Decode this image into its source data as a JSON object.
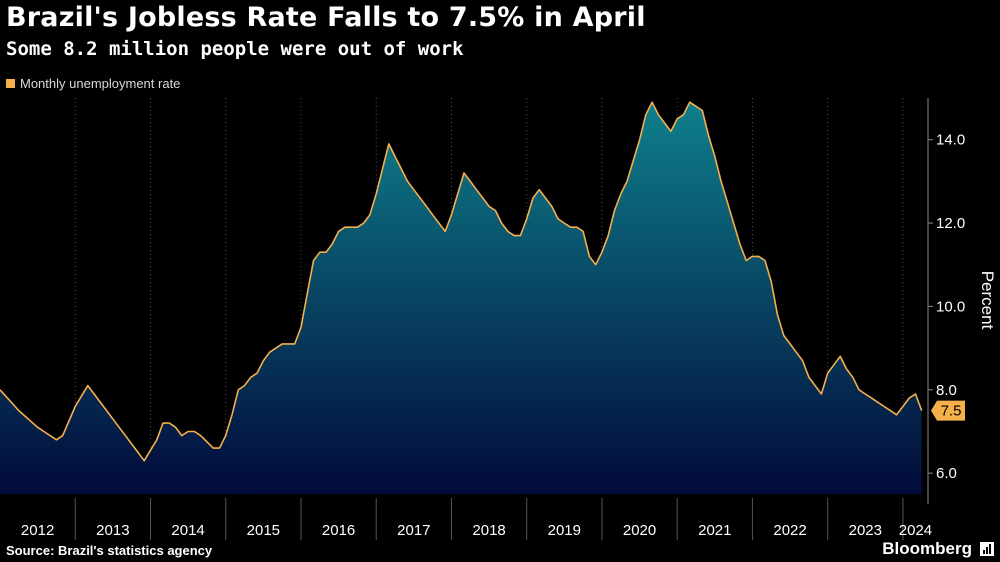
{
  "header": {
    "title": "Brazil's Jobless Rate Falls to 7.5% in April",
    "subtitle": "Some 8.2 million people were out of work"
  },
  "legend": {
    "label": "Monthly unemployment rate",
    "color": "#f5b04a"
  },
  "footer": {
    "source": "Source: Brazil's statistics agency",
    "brand": "Bloomberg"
  },
  "colors": {
    "line": "#f5b04a",
    "fill_top": "#0e7f8b",
    "fill_bottom": "#020a3a",
    "background": "#000000",
    "grid": "#555555",
    "last_value_bg": "#f5b04a"
  },
  "chart_data": {
    "type": "area",
    "ylabel": "Percent",
    "ylim": [
      5.5,
      15.0
    ],
    "yticks": [
      "6.0",
      "8.0",
      "10.0",
      "12.0",
      "14.0"
    ],
    "ytick_values": [
      6,
      8,
      10,
      12,
      14
    ],
    "xlim": [
      "2012-01",
      "2024-05"
    ],
    "xticks": [
      "2012",
      "2013",
      "2014",
      "2015",
      "2016",
      "2017",
      "2018",
      "2019",
      "2020",
      "2021",
      "2022",
      "2023",
      "2024"
    ],
    "last_value_label": "7.5",
    "grid": "vertical dotted at year boundaries",
    "series": [
      {
        "x": [
          "2012-01",
          "2012-04",
          "2012-07",
          "2012-08",
          "2012-10",
          "2012-11",
          "2013-01",
          "2013-03",
          "2013-04",
          "2013-06",
          "2013-08",
          "2013-10",
          "2013-12",
          "2014-02",
          "2014-03",
          "2014-04",
          "2014-05",
          "2014-06",
          "2014-07",
          "2014-08",
          "2014-09",
          "2014-11",
          "2014-12",
          "2015-01",
          "2015-02",
          "2015-03",
          "2015-04",
          "2015-05",
          "2015-06",
          "2015-07",
          "2015-08",
          "2015-09",
          "2015-10",
          "2015-11",
          "2015-12",
          "2016-01",
          "2016-02",
          "2016-03",
          "2016-04",
          "2016-05",
          "2016-06",
          "2016-07",
          "2016-08",
          "2016-09",
          "2016-10",
          "2016-11",
          "2016-12",
          "2017-01",
          "2017-02",
          "2017-03",
          "2017-04",
          "2017-05",
          "2017-06",
          "2017-07",
          "2017-08",
          "2017-09",
          "2017-10",
          "2017-11",
          "2017-12",
          "2018-01",
          "2018-02",
          "2018-03",
          "2018-04",
          "2018-05",
          "2018-06",
          "2018-07",
          "2018-08",
          "2018-09",
          "2018-10",
          "2018-11",
          "2018-12",
          "2019-01",
          "2019-02",
          "2019-03",
          "2019-04",
          "2019-05",
          "2019-06",
          "2019-07",
          "2019-08",
          "2019-09",
          "2019-10",
          "2019-11",
          "2019-12",
          "2020-01",
          "2020-02",
          "2020-03",
          "2020-04",
          "2020-05",
          "2020-06",
          "2020-07",
          "2020-08",
          "2020-09",
          "2020-10",
          "2020-11",
          "2020-12",
          "2021-01",
          "2021-02",
          "2021-03",
          "2021-04",
          "2021-05",
          "2021-06",
          "2021-07",
          "2021-08",
          "2021-09",
          "2021-10",
          "2021-11",
          "2021-12",
          "2022-01",
          "2022-02",
          "2022-03",
          "2022-04",
          "2022-05",
          "2022-06",
          "2022-07",
          "2022-08",
          "2022-09",
          "2022-10",
          "2022-11",
          "2022-12",
          "2023-01",
          "2023-02",
          "2023-03",
          "2023-04",
          "2023-05",
          "2023-06",
          "2023-07",
          "2023-08",
          "2023-09",
          "2023-10",
          "2023-11",
          "2023-12",
          "2024-01",
          "2024-02",
          "2024-03",
          "2024-04"
        ],
        "y": [
          8.0,
          7.5,
          7.1,
          7.0,
          6.8,
          6.9,
          7.6,
          8.1,
          7.9,
          7.5,
          7.1,
          6.7,
          6.3,
          6.8,
          7.2,
          7.2,
          7.1,
          6.9,
          7.0,
          7.0,
          6.9,
          6.6,
          6.6,
          6.9,
          7.4,
          8.0,
          8.1,
          8.3,
          8.4,
          8.7,
          8.9,
          9.0,
          9.1,
          9.1,
          9.1,
          9.5,
          10.3,
          11.1,
          11.3,
          11.3,
          11.5,
          11.8,
          11.9,
          11.9,
          11.9,
          12.0,
          12.2,
          12.7,
          13.3,
          13.9,
          13.6,
          13.3,
          13.0,
          12.8,
          12.6,
          12.4,
          12.2,
          12.0,
          11.8,
          12.2,
          12.7,
          13.2,
          13.0,
          12.8,
          12.6,
          12.4,
          12.3,
          12.0,
          11.8,
          11.7,
          11.7,
          12.1,
          12.6,
          12.8,
          12.6,
          12.4,
          12.1,
          12.0,
          11.9,
          11.9,
          11.8,
          11.2,
          11.0,
          11.3,
          11.7,
          12.3,
          12.7,
          13.0,
          13.5,
          14.0,
          14.6,
          14.9,
          14.6,
          14.4,
          14.2,
          14.5,
          14.6,
          14.9,
          14.8,
          14.7,
          14.1,
          13.6,
          13.0,
          12.5,
          12.0,
          11.5,
          11.1,
          11.2,
          11.2,
          11.1,
          10.6,
          9.8,
          9.3,
          9.1,
          8.9,
          8.7,
          8.3,
          8.1,
          7.9,
          8.4,
          8.6,
          8.8,
          8.5,
          8.3,
          8.0,
          7.9,
          7.8,
          7.7,
          7.6,
          7.5,
          7.4,
          7.6,
          7.8,
          7.9,
          7.5
        ]
      }
    ]
  }
}
